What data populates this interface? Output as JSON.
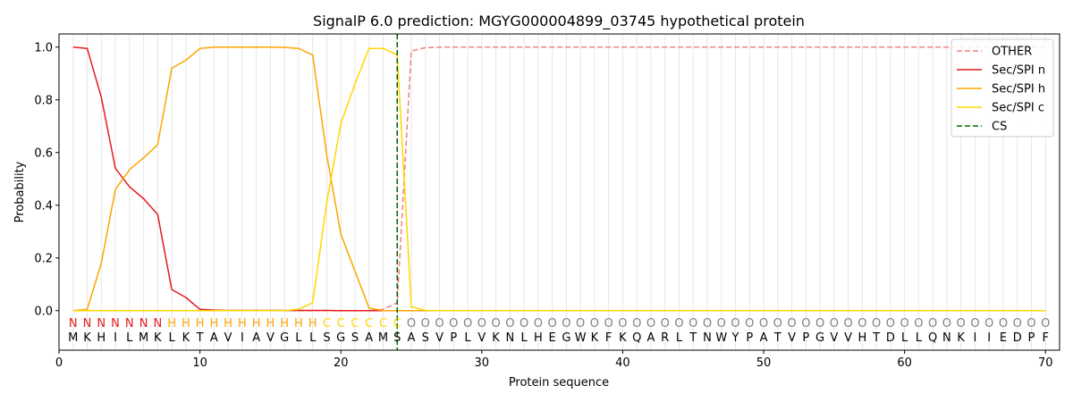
{
  "chart_data": {
    "type": "line",
    "title": "SignalP 6.0 prediction: MGYG000004899_03745 hypothetical protein",
    "xlabel": "Protein sequence",
    "ylabel": "Probability",
    "xlim": [
      0,
      71
    ],
    "ylim": [
      -0.15,
      1.05
    ],
    "xticks": [
      0,
      10,
      20,
      30,
      40,
      50,
      60,
      70
    ],
    "yticks": [
      0.0,
      0.2,
      0.4,
      0.6,
      0.8,
      1.0
    ],
    "xtick_labels": [
      "0",
      "10",
      "20",
      "30",
      "40",
      "50",
      "60",
      "70"
    ],
    "ytick_labels": [
      "0.0",
      "0.2",
      "0.4",
      "0.6",
      "0.8",
      "1.0"
    ],
    "grid": "vertical lines at each residue",
    "legend_position": "top-right",
    "sequence": [
      "M",
      "K",
      "H",
      "I",
      "L",
      "M",
      "K",
      "L",
      "K",
      "T",
      "A",
      "V",
      "I",
      "A",
      "V",
      "G",
      "L",
      "L",
      "S",
      "G",
      "S",
      "A",
      "M",
      "S",
      "A",
      "S",
      "V",
      "P",
      "L",
      "V",
      "K",
      "N",
      "L",
      "H",
      "E",
      "G",
      "W",
      "K",
      "F",
      "K",
      "Q",
      "A",
      "R",
      "L",
      "T",
      "N",
      "W",
      "Y",
      "P",
      "A",
      "T",
      "V",
      "P",
      "G",
      "V",
      "V",
      "H",
      "T",
      "D",
      "L",
      "L",
      "Q",
      "N",
      "K",
      "I",
      "I",
      "E",
      "D",
      "P",
      "F"
    ],
    "labels": [
      "N",
      "N",
      "N",
      "N",
      "N",
      "N",
      "N",
      "H",
      "H",
      "H",
      "H",
      "H",
      "H",
      "H",
      "H",
      "H",
      "H",
      "H",
      "C",
      "C",
      "C",
      "C",
      "C",
      "C",
      "O",
      "O",
      "O",
      "O",
      "O",
      "O",
      "O",
      "O",
      "O",
      "O",
      "O",
      "O",
      "O",
      "O",
      "O",
      "O",
      "O",
      "O",
      "O",
      "O",
      "O",
      "O",
      "O",
      "O",
      "O",
      "O",
      "O",
      "O",
      "O",
      "O",
      "O",
      "O",
      "O",
      "O",
      "O",
      "O",
      "O",
      "O",
      "O",
      "O",
      "O",
      "O",
      "O",
      "O",
      "O",
      "O"
    ],
    "label_colors": {
      "N": "#e41a1c",
      "H": "#ffa500",
      "C": "#ffd700",
      "O": "#808080"
    },
    "cleavage_site": 24,
    "series": [
      {
        "name": "OTHER",
        "color": "#f08080",
        "dash": true,
        "values": [
          0.0,
          0.0,
          0.0,
          0.0,
          0.0,
          0.0,
          0.0,
          0.0,
          0.0,
          0.0,
          0.0,
          0.0,
          0.0,
          0.0,
          0.0,
          0.0,
          0.0,
          0.0,
          0.0,
          0.0,
          0.0,
          0.0,
          0.005,
          0.03,
          0.985,
          0.998,
          1.0,
          1.0,
          1.0,
          1.0,
          1.0,
          1.0,
          1.0,
          1.0,
          1.0,
          1.0,
          1.0,
          1.0,
          1.0,
          1.0,
          1.0,
          1.0,
          1.0,
          1.0,
          1.0,
          1.0,
          1.0,
          1.0,
          1.0,
          1.0,
          1.0,
          1.0,
          1.0,
          1.0,
          1.0,
          1.0,
          1.0,
          1.0,
          1.0,
          1.0,
          1.0,
          1.0,
          1.0,
          1.0,
          1.0,
          1.0,
          1.0,
          1.0,
          1.0,
          1.0
        ]
      },
      {
        "name": "Sec/SPI n",
        "color": "#e41a1c",
        "dash": false,
        "values": [
          1.0,
          0.995,
          0.81,
          0.54,
          0.47,
          0.425,
          0.365,
          0.08,
          0.05,
          0.005,
          0.002,
          0.001,
          0.001,
          0.001,
          0.001,
          0.001,
          0.001,
          0.001,
          0.001,
          0.0,
          0.0,
          0.0,
          0.0,
          0.0,
          0.0,
          0.0,
          0.0,
          0.0,
          0.0,
          0.0,
          0.0,
          0.0,
          0.0,
          0.0,
          0.0,
          0.0,
          0.0,
          0.0,
          0.0,
          0.0,
          0.0,
          0.0,
          0.0,
          0.0,
          0.0,
          0.0,
          0.0,
          0.0,
          0.0,
          0.0,
          0.0,
          0.0,
          0.0,
          0.0,
          0.0,
          0.0,
          0.0,
          0.0,
          0.0,
          0.0,
          0.0,
          0.0,
          0.0,
          0.0,
          0.0,
          0.0,
          0.0,
          0.0,
          0.0,
          0.0
        ]
      },
      {
        "name": "Sec/SPI h",
        "color": "#ffa500",
        "dash": false,
        "values": [
          0.0,
          0.005,
          0.18,
          0.46,
          0.535,
          0.58,
          0.63,
          0.92,
          0.95,
          0.995,
          1.0,
          1.0,
          1.0,
          1.0,
          1.0,
          0.999,
          0.995,
          0.97,
          0.59,
          0.29,
          0.15,
          0.01,
          0.0,
          0.0,
          0.0,
          0.0,
          0.0,
          0.0,
          0.0,
          0.0,
          0.0,
          0.0,
          0.0,
          0.0,
          0.0,
          0.0,
          0.0,
          0.0,
          0.0,
          0.0,
          0.0,
          0.0,
          0.0,
          0.0,
          0.0,
          0.0,
          0.0,
          0.0,
          0.0,
          0.0,
          0.0,
          0.0,
          0.0,
          0.0,
          0.0,
          0.0,
          0.0,
          0.0,
          0.0,
          0.0,
          0.0,
          0.0,
          0.0,
          0.0,
          0.0,
          0.0,
          0.0,
          0.0,
          0.0,
          0.0
        ]
      },
      {
        "name": "Sec/SPI c",
        "color": "#ffd700",
        "dash": false,
        "values": [
          0.0,
          0.0,
          0.0,
          0.0,
          0.0,
          0.0,
          0.0,
          0.0,
          0.0,
          0.0,
          0.0,
          0.0,
          0.0,
          0.0,
          0.0,
          0.0,
          0.005,
          0.03,
          0.41,
          0.71,
          0.86,
          0.995,
          0.995,
          0.97,
          0.015,
          0.001,
          0.0,
          0.0,
          0.0,
          0.0,
          0.0,
          0.0,
          0.0,
          0.0,
          0.0,
          0.0,
          0.0,
          0.0,
          0.0,
          0.0,
          0.0,
          0.0,
          0.0,
          0.0,
          0.0,
          0.0,
          0.0,
          0.0,
          0.0,
          0.0,
          0.0,
          0.0,
          0.0,
          0.0,
          0.0,
          0.0,
          0.0,
          0.0,
          0.0,
          0.0,
          0.0,
          0.0,
          0.0,
          0.0,
          0.0,
          0.0,
          0.0,
          0.0,
          0.0,
          0.0
        ]
      }
    ],
    "legend": [
      {
        "name": "OTHER",
        "color": "#f08080",
        "dash": true
      },
      {
        "name": "Sec/SPI n",
        "color": "#e41a1c",
        "dash": false
      },
      {
        "name": "Sec/SPI h",
        "color": "#ffa500",
        "dash": false
      },
      {
        "name": "Sec/SPI c",
        "color": "#ffd700",
        "dash": false
      },
      {
        "name": "CS",
        "color": "#006400",
        "dash": true
      }
    ]
  }
}
